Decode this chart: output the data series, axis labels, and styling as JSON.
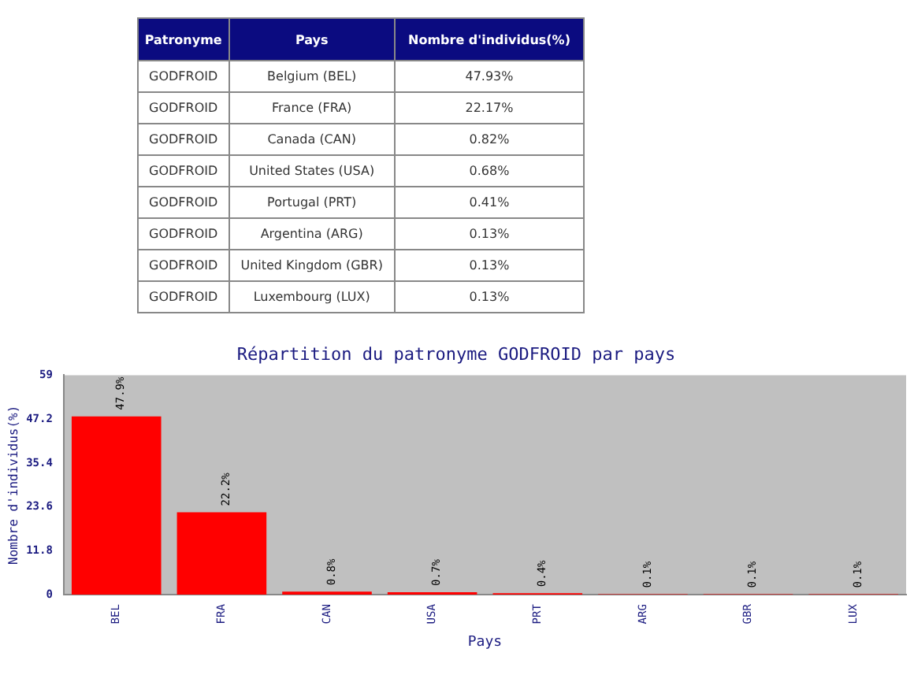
{
  "chart_data": [
    {
      "type": "other",
      "annotations": [
        "Patronyme",
        "Pays",
        "Nombre d'individus(%)"
      ],
      "y_categories": [
        "GODFROID",
        "GODFROID",
        "GODFROID",
        "GODFROID",
        "GODFROID",
        "GODFROID",
        "GODFROID",
        "GODFROID"
      ],
      "categories": [
        "Belgium (BEL)",
        "France (FRA)",
        "Canada (CAN)",
        "United States (USA)",
        "Portugal (PRT)",
        "Argentina (ARG)",
        "United Kingdom (GBR)",
        "Luxembourg (LUX)"
      ],
      "value_labels": [
        "47.93%",
        "22.17%",
        "0.82%",
        "0.68%",
        "0.41%",
        "0.13%",
        "0.13%",
        "0.13%"
      ]
    },
    {
      "type": "bar",
      "title": "Répartition du patronyme GODFROID par pays",
      "xlabel": "Pays",
      "ylabel": "Nombre d'individus(%)",
      "categories": [
        "BEL",
        "FRA",
        "CAN",
        "USA",
        "PRT",
        "ARG",
        "GBR",
        "LUX"
      ],
      "values": [
        47.93,
        22.17,
        0.82,
        0.68,
        0.41,
        0.13,
        0.13,
        0.13
      ],
      "value_labels": [
        "47.9%",
        "22.2%",
        "0.8%",
        "0.7%",
        "0.4%",
        "0.1%",
        "0.1%",
        "0.1%"
      ],
      "color": "#ff0000",
      "ylim": [
        0,
        59
      ],
      "yticks": [
        0,
        11.8,
        23.6,
        35.4,
        47.2,
        59
      ],
      "grid": false,
      "legend": false
    }
  ]
}
